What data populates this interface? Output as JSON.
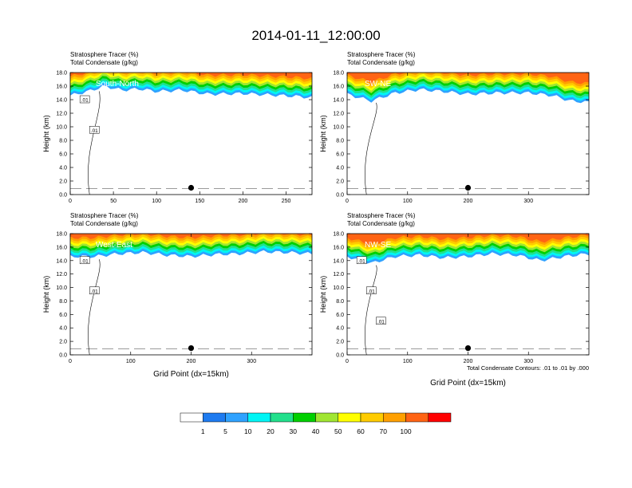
{
  "title": "2014-01-11_12:00:00",
  "colors": {
    "levels": [
      "#ffffff",
      "#1e7bf0",
      "#2fa2ff",
      "#00f5f5",
      "#22e08c",
      "#00d000",
      "#a0e632",
      "#ffff00",
      "#ffcc00",
      "#ffa000",
      "#ff6414",
      "#ff0000"
    ],
    "contour": "#000000"
  },
  "colorbar": {
    "labels": [
      "1",
      "5",
      "10",
      "20",
      "30",
      "40",
      "50",
      "60",
      "70",
      "100"
    ]
  },
  "contour_note": "Total Condensate Contours: .01 to .01 by .000",
  "chart_data": [
    {
      "type": "heatmap",
      "subtitle1": "Stratosphere Tracer   (%)",
      "subtitle2": "Total Condensate   (g/kg)",
      "panel_label": "South-North",
      "ylabel": "Height (km)",
      "xlabel": "",
      "xticks": [
        "0",
        "50",
        "100",
        "150",
        "200",
        "250"
      ],
      "xlim": [
        0,
        280
      ],
      "yticks": [
        "0.0",
        "2.0",
        "4.0",
        "6.0",
        "8.0",
        "10.0",
        "12.0",
        "14.0",
        "16.0",
        "18.0"
      ],
      "ylim": [
        0,
        18
      ],
      "tropopause_km": [
        [
          0,
          14.6
        ],
        [
          20,
          15.2
        ],
        [
          40,
          16
        ],
        [
          60,
          15.4
        ],
        [
          80,
          15.6
        ],
        [
          100,
          15.2
        ],
        [
          130,
          15.4
        ],
        [
          160,
          14.8
        ],
        [
          200,
          14.9
        ],
        [
          230,
          14.7
        ],
        [
          260,
          14.5
        ],
        [
          280,
          14.3
        ]
      ],
      "contour_labels": [
        ".01",
        ".01"
      ],
      "marker_x": 140
    },
    {
      "type": "heatmap",
      "subtitle1": "Stratosphere Tracer   (%)",
      "subtitle2": "Total Condensate   (g/kg)",
      "panel_label": "SW-NE",
      "ylabel": "Height (km)",
      "xlabel": "",
      "xticks": [
        "0",
        "100",
        "200",
        "300"
      ],
      "xlim": [
        0,
        400
      ],
      "yticks": [
        "0.0",
        "2.0",
        "4.0",
        "6.0",
        "8.0",
        "10.0",
        "12.0",
        "14.0",
        "16.0",
        "18.0"
      ],
      "ylim": [
        0,
        18
      ],
      "tropopause_km": [
        [
          0,
          14.8
        ],
        [
          40,
          13.8
        ],
        [
          80,
          15.0
        ],
        [
          120,
          15.5
        ],
        [
          160,
          15.2
        ],
        [
          200,
          14.8
        ],
        [
          250,
          15.0
        ],
        [
          300,
          15.0
        ],
        [
          340,
          14.6
        ],
        [
          370,
          13.8
        ],
        [
          400,
          13.6
        ]
      ],
      "contour_labels": [],
      "marker_x": 200
    },
    {
      "type": "heatmap",
      "subtitle1": "Stratosphere Tracer   (%)",
      "subtitle2": "Total Condensate   (g/kg)",
      "panel_label": "West-East",
      "ylabel": "Height (km)",
      "xlabel": "Grid Point (dx=15km)",
      "xticks": [
        "0",
        "100",
        "200",
        "300"
      ],
      "xlim": [
        0,
        400
      ],
      "yticks": [
        "0.0",
        "2.0",
        "4.0",
        "6.0",
        "8.0",
        "10.0",
        "12.0",
        "14.0",
        "16.0",
        "18.0"
      ],
      "ylim": [
        0,
        18
      ],
      "tropopause_km": [
        [
          0,
          14.6
        ],
        [
          40,
          14.6
        ],
        [
          80,
          15.0
        ],
        [
          120,
          15.2
        ],
        [
          160,
          14.8
        ],
        [
          200,
          14.6
        ],
        [
          240,
          14.9
        ],
        [
          280,
          15.0
        ],
        [
          320,
          15.3
        ],
        [
          360,
          15.2
        ],
        [
          400,
          15.0
        ]
      ],
      "contour_labels": [
        ".01",
        ".01"
      ],
      "marker_x": 200
    },
    {
      "type": "heatmap",
      "subtitle1": "Stratosphere Tracer   (%)",
      "subtitle2": "Total Condensate   (g/kg)",
      "panel_label": "NW-SE",
      "ylabel": "Height (km)",
      "xlabel": "Grid Point (dx=15km)",
      "xticks": [
        "0",
        "100",
        "200",
        "300"
      ],
      "xlim": [
        0,
        400
      ],
      "yticks": [
        "0.0",
        "2.0",
        "4.0",
        "6.0",
        "8.0",
        "10.0",
        "12.0",
        "14.0",
        "16.0",
        "18.0"
      ],
      "ylim": [
        0,
        18
      ],
      "tropopause_km": [
        [
          0,
          14.6
        ],
        [
          40,
          13.6
        ],
        [
          80,
          14.6
        ],
        [
          120,
          14.8
        ],
        [
          160,
          14.4
        ],
        [
          200,
          14.6
        ],
        [
          240,
          15.0
        ],
        [
          280,
          14.8
        ],
        [
          320,
          14.0
        ],
        [
          360,
          14.6
        ],
        [
          400,
          15.0
        ]
      ],
      "contour_labels": [
        ".01",
        ".01",
        ".01"
      ],
      "marker_x": 200
    }
  ]
}
